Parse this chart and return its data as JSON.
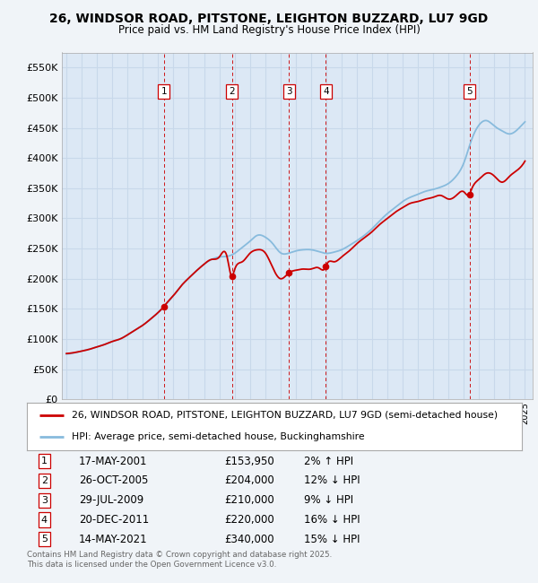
{
  "title": "26, WINDSOR ROAD, PITSTONE, LEIGHTON BUZZARD, LU7 9GD",
  "subtitle": "Price paid vs. HM Land Registry's House Price Index (HPI)",
  "ylabel_values": [
    0,
    50000,
    100000,
    150000,
    200000,
    250000,
    300000,
    350000,
    400000,
    450000,
    500000,
    550000
  ],
  "ylim": [
    0,
    575000
  ],
  "xlim_start": 1994.7,
  "xlim_end": 2025.5,
  "bg_color": "#f0f4f8",
  "plot_bg_color": "#dce8f5",
  "grid_color": "#c8d8ea",
  "sale_line_color": "#cc0000",
  "hpi_line_color": "#88bbdd",
  "sale_marker_color": "#cc0000",
  "vline_color": "#cc0000",
  "transactions": [
    {
      "num": 1,
      "date": "17-MAY-2001",
      "price": 153950,
      "pct": "2%",
      "dir": "↑",
      "year": 2001.37
    },
    {
      "num": 2,
      "date": "26-OCT-2005",
      "price": 204000,
      "pct": "12%",
      "dir": "↓",
      "year": 2005.82
    },
    {
      "num": 3,
      "date": "29-JUL-2009",
      "price": 210000,
      "pct": "9%",
      "dir": "↓",
      "year": 2009.57
    },
    {
      "num": 4,
      "date": "20-DEC-2011",
      "price": 220000,
      "pct": "16%",
      "dir": "↓",
      "year": 2011.97
    },
    {
      "num": 5,
      "date": "14-MAY-2021",
      "price": 340000,
      "pct": "15%",
      "dir": "↓",
      "year": 2021.37
    }
  ],
  "legend_sale_label": "26, WINDSOR ROAD, PITSTONE, LEIGHTON BUZZARD, LU7 9GD (semi-detached house)",
  "legend_hpi_label": "HPI: Average price, semi-detached house, Buckinghamshire",
  "footer": "Contains HM Land Registry data © Crown copyright and database right 2025.\nThis data is licensed under the Open Government Licence v3.0.",
  "hpi_data": {
    "years": [
      1995,
      1995.5,
      1996,
      1996.5,
      1997,
      1997.5,
      1998,
      1998.5,
      1999,
      1999.5,
      2000,
      2000.5,
      2001,
      2001.5,
      2002,
      2002.5,
      2003,
      2003.5,
      2004,
      2004.5,
      2005,
      2005.5,
      2006,
      2006.5,
      2007,
      2007.5,
      2008,
      2008.5,
      2009,
      2009.5,
      2010,
      2010.5,
      2011,
      2011.5,
      2012,
      2012.5,
      2013,
      2013.5,
      2014,
      2014.5,
      2015,
      2015.5,
      2016,
      2016.5,
      2017,
      2017.5,
      2018,
      2018.5,
      2019,
      2019.5,
      2020,
      2020.5,
      2021,
      2021.5,
      2022,
      2022.5,
      2023,
      2023.5,
      2024,
      2024.5,
      2025
    ],
    "values": [
      75000,
      77000,
      80000,
      83000,
      87000,
      91000,
      96000,
      100000,
      107000,
      115000,
      123000,
      133000,
      144000,
      157000,
      172000,
      188000,
      201000,
      213000,
      224000,
      232000,
      236000,
      237000,
      242000,
      252000,
      262000,
      272000,
      269000,
      258000,
      243000,
      242000,
      246000,
      248000,
      248000,
      245000,
      242000,
      244000,
      248000,
      255000,
      263000,
      272000,
      283000,
      296000,
      308000,
      318000,
      328000,
      335000,
      340000,
      345000,
      348000,
      352000,
      358000,
      370000,
      392000,
      430000,
      455000,
      462000,
      453000,
      445000,
      440000,
      447000,
      460000
    ]
  },
  "sale_data": {
    "years": [
      1995,
      1995.5,
      1996,
      1996.5,
      1997,
      1997.5,
      1998,
      1998.5,
      1999,
      1999.5,
      2000,
      2000.5,
      2001,
      2001.37,
      2001.5,
      2002,
      2002.5,
      2003,
      2003.5,
      2004,
      2004.5,
      2005,
      2005.5,
      2005.82,
      2006,
      2006.5,
      2007,
      2007.5,
      2008,
      2008.5,
      2009,
      2009.57,
      2010,
      2010.5,
      2011,
      2011.5,
      2011.97,
      2012,
      2012.5,
      2013,
      2013.5,
      2014,
      2014.5,
      2015,
      2015.5,
      2016,
      2016.5,
      2017,
      2017.5,
      2018,
      2018.5,
      2019,
      2019.5,
      2020,
      2020.5,
      2021,
      2021.37,
      2021.5,
      2022,
      2022.5,
      2023,
      2023.5,
      2024,
      2024.5,
      2025
    ],
    "values": [
      76000,
      77500,
      80000,
      83000,
      87000,
      91000,
      96000,
      100000,
      107000,
      115000,
      123000,
      133000,
      144000,
      153950,
      158000,
      172000,
      188000,
      201000,
      213000,
      224000,
      232000,
      236000,
      237000,
      204000,
      215000,
      228000,
      242000,
      248000,
      243000,
      218000,
      200000,
      210000,
      214000,
      216000,
      216000,
      218000,
      220000,
      222000,
      228000,
      236000,
      246000,
      258000,
      268000,
      278000,
      290000,
      300000,
      310000,
      318000,
      325000,
      328000,
      332000,
      335000,
      338000,
      332000,
      338000,
      344000,
      340000,
      348000,
      365000,
      375000,
      370000,
      360000,
      370000,
      380000,
      395000
    ]
  }
}
